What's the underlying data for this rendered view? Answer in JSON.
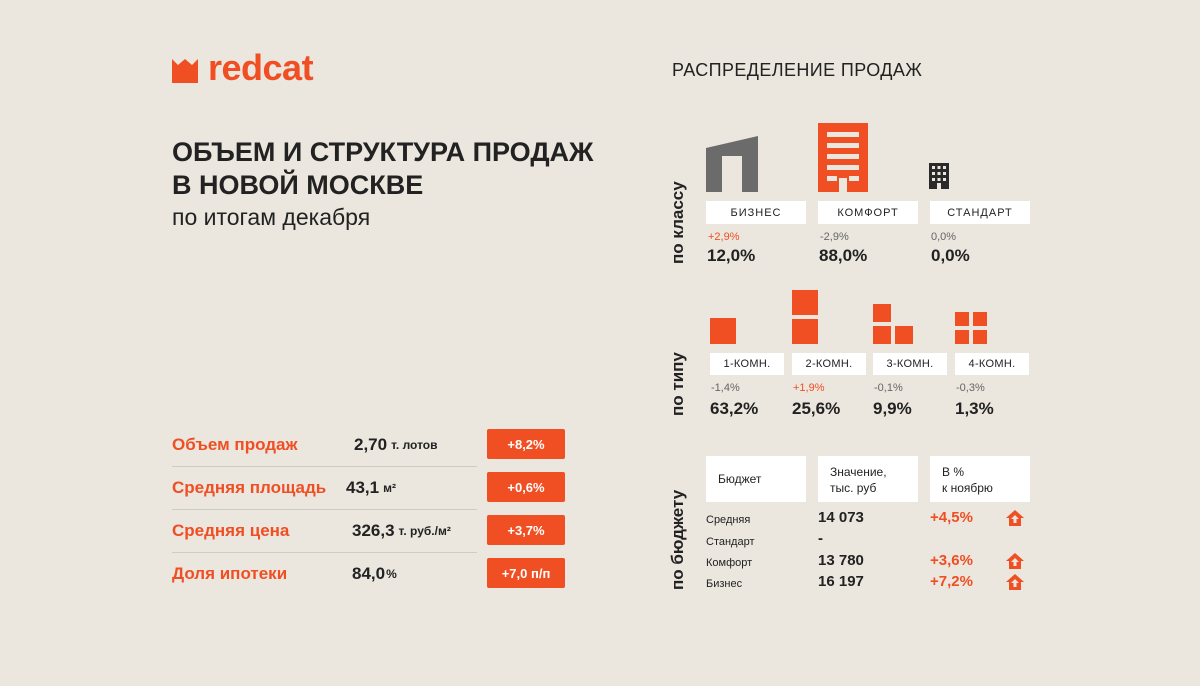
{
  "brand": {
    "name": "redcat",
    "accent": "#f04e23",
    "background": "#ebe6de"
  },
  "headline": {
    "line1": "ОБЪЕМ И СТРУКТУРА ПРОДАЖ",
    "line2": "В НОВОЙ МОСКВЕ",
    "subtitle": "по итогам декабря"
  },
  "metrics": [
    {
      "label": "Объем продаж",
      "value": "2,70",
      "unit": "т. лотов",
      "badge": "+8,2%"
    },
    {
      "label": "Средняя площадь",
      "value": "43,1",
      "unit": "м²",
      "badge": "+0,6%"
    },
    {
      "label": "Средняя цена",
      "value": "326,3",
      "unit": "т. руб./м²",
      "badge": "+3,7%"
    },
    {
      "label": "Доля ипотеки",
      "value": "84,0",
      "unit": "%",
      "badge": "+7,0 п/п"
    }
  ],
  "distribution": {
    "title": "РАСПРЕДЕЛЕНИЕ ПРОДАЖ",
    "by_class": {
      "axis_label": "по классу",
      "items": [
        {
          "name": "БИЗНЕС",
          "delta": "+2,9%",
          "delta_up": true,
          "share": "12,0%",
          "icon": "business-building-icon"
        },
        {
          "name": "КОМФОРТ",
          "delta": "-2,9%",
          "delta_up": false,
          "share": "88,0%",
          "icon": "comfort-building-icon"
        },
        {
          "name": "СТАНДАРТ",
          "delta": "0,0%",
          "delta_up": false,
          "share": "0,0%",
          "icon": "standard-building-icon"
        }
      ]
    },
    "by_type": {
      "axis_label": "по типу",
      "items": [
        {
          "name": "1-КОМН.",
          "delta": "-1,4%",
          "delta_up": false,
          "share": "63,2%",
          "icon": "one-room-icon"
        },
        {
          "name": "2-КОМН.",
          "delta": "+1,9%",
          "delta_up": true,
          "share": "25,6%",
          "icon": "two-room-icon"
        },
        {
          "name": "3-КОМН.",
          "delta": "-0,1%",
          "delta_up": false,
          "share": "9,9%",
          "icon": "three-room-icon"
        },
        {
          "name": "4-КОМН.",
          "delta": "-0,3%",
          "delta_up": false,
          "share": "1,3%",
          "icon": "four-room-icon"
        }
      ]
    },
    "by_budget": {
      "axis_label": "по бюджету",
      "headers": {
        "col1": "Бюджет",
        "col2_line1": "Значение,",
        "col2_line2": "тыс. руб",
        "col3_line1": "В %",
        "col3_line2": "к ноябрю"
      },
      "rows": [
        {
          "label": "Средняя",
          "value": "14 073",
          "pct": "+4,5%",
          "icon": "house-up-icon"
        },
        {
          "label": "Стандарт",
          "value": "-",
          "pct": "",
          "icon": ""
        },
        {
          "label": "Комфорт",
          "value": "13 780",
          "pct": "+3,6%",
          "icon": "house-up-icon"
        },
        {
          "label": "Бизнес",
          "value": "16 197",
          "pct": "+7,2%",
          "icon": "house-up-icon"
        }
      ]
    }
  }
}
